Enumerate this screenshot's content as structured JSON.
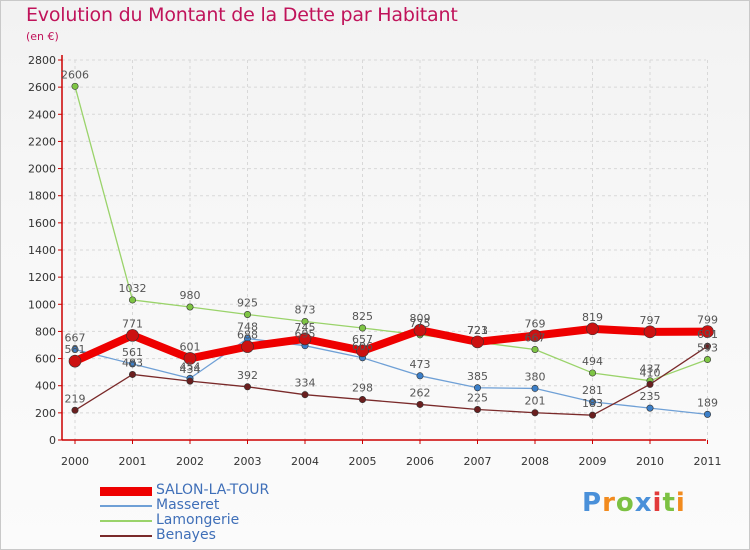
{
  "title": "Evolution du Montant de la Dette par Habitant",
  "subtitle": "(en €)",
  "logo": "Proxiti",
  "colors": {
    "title": "#c0135a",
    "axis": "#cc0000",
    "grid": "#d8d8d8",
    "label": "#555555",
    "legend_text": "#3f6fb8"
  },
  "chart_data": {
    "type": "line",
    "x": [
      "2000",
      "2001",
      "2002",
      "2003",
      "2004",
      "2005",
      "2006",
      "2007",
      "2008",
      "2009",
      "2010",
      "2011"
    ],
    "ylim": [
      0,
      2800
    ],
    "yticks": [
      0,
      200,
      400,
      600,
      800,
      1000,
      1200,
      1400,
      1600,
      1800,
      2000,
      2200,
      2400,
      2600,
      2800
    ],
    "grid": true,
    "legend_position": "bottom-left",
    "series": [
      {
        "name": "SALON-LA-TOUR",
        "values": [
          581,
          771,
          601,
          688,
          745,
          657,
          809,
          723,
          769,
          819,
          797,
          799
        ],
        "color": "#ee0000",
        "marker_color": "#cc1111",
        "width": 8
      },
      {
        "name": "Masseret",
        "values": [
          667,
          561,
          454,
          748,
          695,
          606,
          473,
          385,
          380,
          281,
          235,
          189
        ],
        "color": "#6fa0d6",
        "marker_color": "#3c7fc8",
        "width": 1.3
      },
      {
        "name": "Lamongerie",
        "values": [
          2606,
          1032,
          980,
          925,
          873,
          825,
          775,
          721,
          667,
          494,
          437,
          593
        ],
        "color": "#9ad36a",
        "marker_color": "#7ec544",
        "width": 1.3
      },
      {
        "name": "Benayes",
        "values": [
          219,
          483,
          434,
          392,
          334,
          298,
          262,
          225,
          201,
          183,
          410,
          691
        ],
        "color": "#7a2a2a",
        "marker_color": "#6a1f1f",
        "width": 1.3
      }
    ],
    "data_labels": [
      {
        "x": "2000",
        "text": "2606"
      },
      {
        "x": "2000",
        "text": "667"
      },
      {
        "x": "2000",
        "text": "581"
      },
      {
        "x": "2000",
        "text": "219"
      },
      {
        "x": "2001",
        "text": "1032"
      },
      {
        "x": "2001",
        "text": "771"
      },
      {
        "x": "2001",
        "text": "561"
      },
      {
        "x": "2001",
        "text": "483"
      },
      {
        "x": "2002",
        "text": "980"
      },
      {
        "x": "2002",
        "text": "601"
      },
      {
        "x": "2002",
        "text": "454"
      },
      {
        "x": "2002",
        "text": "434"
      },
      {
        "x": "2003",
        "text": "925"
      },
      {
        "x": "2003",
        "text": "748"
      },
      {
        "x": "2003",
        "text": "688"
      },
      {
        "x": "2003",
        "text": "392"
      },
      {
        "x": "2004",
        "text": "873"
      },
      {
        "x": "2004",
        "text": "745"
      },
      {
        "x": "2004",
        "text": "695"
      },
      {
        "x": "2004",
        "text": "334"
      },
      {
        "x": "2005",
        "text": "825"
      },
      {
        "x": "2005",
        "text": "657"
      },
      {
        "x": "2005",
        "text": "606"
      },
      {
        "x": "2005",
        "text": "298"
      },
      {
        "x": "2006",
        "text": "809"
      },
      {
        "x": "2006",
        "text": "775"
      },
      {
        "x": "2006",
        "text": "473"
      },
      {
        "x": "2006",
        "text": "262"
      },
      {
        "x": "2007",
        "text": "723"
      },
      {
        "x": "2007",
        "text": "721"
      },
      {
        "x": "2007",
        "text": "385"
      },
      {
        "x": "2007",
        "text": "225"
      },
      {
        "x": "2008",
        "text": "769"
      },
      {
        "x": "2008",
        "text": "667"
      },
      {
        "x": "2008",
        "text": "380"
      },
      {
        "x": "2008",
        "text": "201"
      },
      {
        "x": "2009",
        "text": "819"
      },
      {
        "x": "2009",
        "text": "494"
      },
      {
        "x": "2009",
        "text": "281"
      },
      {
        "x": "2009",
        "text": "183"
      },
      {
        "x": "2010",
        "text": "797"
      },
      {
        "x": "2010",
        "text": "437"
      },
      {
        "x": "2010",
        "text": "410"
      },
      {
        "x": "2010",
        "text": "235"
      },
      {
        "x": "2011",
        "text": "799"
      },
      {
        "x": "2011",
        "text": "691"
      },
      {
        "x": "2011",
        "text": "593"
      },
      {
        "x": "2011",
        "text": "189"
      }
    ]
  }
}
